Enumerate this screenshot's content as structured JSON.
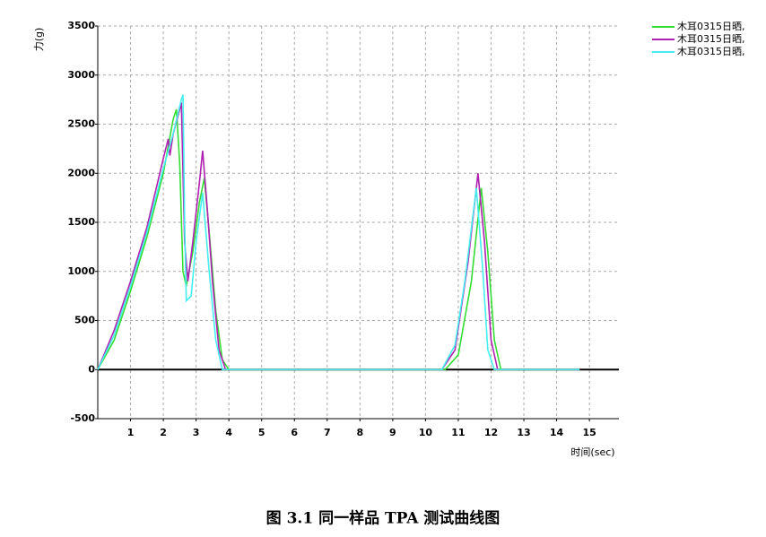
{
  "chart_data": {
    "type": "line",
    "ylabel": "力(g)",
    "xlabel": "时间(sec)",
    "caption": "图 3.1 同一样品 TPA 测试曲线图",
    "xlim": [
      0,
      15.9
    ],
    "ylim": [
      -500,
      3500
    ],
    "xticks": [
      1,
      2,
      3,
      4,
      5,
      6,
      7,
      8,
      9,
      10,
      11,
      12,
      13,
      14,
      15
    ],
    "yticks": [
      -500,
      0,
      500,
      1000,
      1500,
      2000,
      2500,
      3000,
      3500
    ],
    "grid": true,
    "legend": "outside-top-right",
    "series": [
      {
        "name": "木耳0315日晒,",
        "color": "#33dd33",
        "x": [
          0,
          0.5,
          1,
          1.5,
          2,
          2.3,
          2.4,
          2.5,
          2.6,
          2.7,
          2.9,
          3.1,
          3.25,
          3.4,
          3.6,
          3.8,
          4,
          10.6,
          11,
          11.4,
          11.7,
          11.9,
          12.1,
          12.3,
          14.7
        ],
        "values": [
          0,
          300,
          800,
          1350,
          2000,
          2550,
          2650,
          2100,
          1000,
          850,
          1200,
          1700,
          1950,
          1400,
          600,
          100,
          0,
          0,
          150,
          900,
          1850,
          1200,
          300,
          0,
          0
        ]
      },
      {
        "name": "木耳0315日晒,",
        "color": "#b020b0",
        "x": [
          0,
          0.5,
          1,
          1.5,
          2,
          2.15,
          2.2,
          2.3,
          2.5,
          2.55,
          2.65,
          2.75,
          2.9,
          3.1,
          3.2,
          3.35,
          3.5,
          3.7,
          3.9,
          10.5,
          10.9,
          11.3,
          11.6,
          11.8,
          12,
          12.2,
          14.7
        ],
        "values": [
          0,
          400,
          900,
          1450,
          2150,
          2350,
          2180,
          2400,
          2650,
          2720,
          1300,
          900,
          1300,
          1900,
          2230,
          1600,
          900,
          200,
          0,
          0,
          200,
          1100,
          2000,
          1300,
          300,
          0,
          0
        ]
      },
      {
        "name": "木耳0315日晒,",
        "color": "#44eeee",
        "x": [
          0,
          0.5,
          1,
          1.5,
          2,
          2.3,
          2.55,
          2.6,
          2.65,
          2.7,
          2.85,
          3,
          3.2,
          3.4,
          3.6,
          3.8,
          10.5,
          10.9,
          11.2,
          11.55,
          11.75,
          11.9,
          12.1,
          14.7
        ],
        "values": [
          0,
          350,
          850,
          1400,
          2050,
          2400,
          2750,
          2800,
          1500,
          700,
          750,
          1300,
          1800,
          1000,
          300,
          0,
          0,
          250,
          900,
          1850,
          1000,
          200,
          0,
          0
        ]
      }
    ]
  }
}
